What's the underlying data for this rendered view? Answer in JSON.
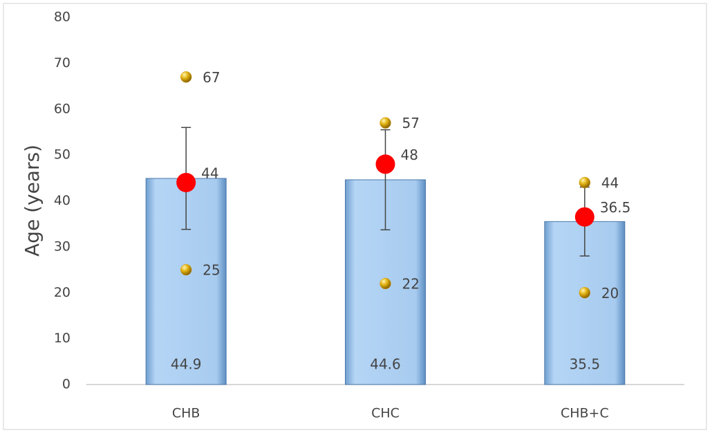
{
  "chart_data": {
    "type": "bar",
    "ylabel": "Age (years)",
    "categories": [
      "CHB",
      "CHC",
      "CHB+C"
    ],
    "values": [
      44.9,
      44.6,
      35.5
    ],
    "errors": [
      11.1,
      10.9,
      7.5
    ],
    "color": "#a9cdf0",
    "series": [
      {
        "color": "#ff0000",
        "values": [
          44,
          48,
          36.5
        ]
      },
      {
        "color": "#d4a017",
        "values": [
          67,
          57,
          44
        ]
      },
      {
        "color": "#d4a017",
        "values": [
          25,
          22,
          20
        ]
      }
    ],
    "ylim": [
      0,
      80
    ],
    "yticks": [
      0,
      10,
      20,
      30,
      40,
      50,
      60,
      70,
      80
    ],
    "grid": false
  }
}
